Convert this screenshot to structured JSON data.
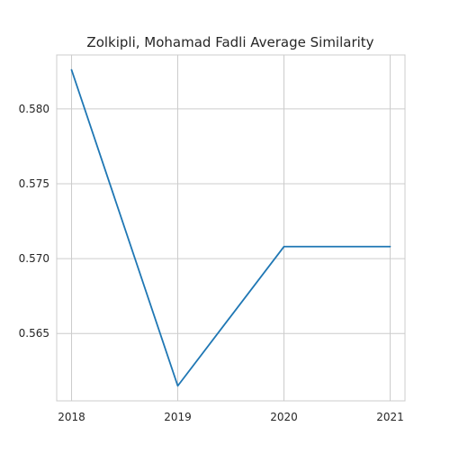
{
  "chart_data": {
    "type": "line",
    "title": "Zolkipli, Mohamad Fadli Average Similarity",
    "xlabel": "",
    "ylabel": "",
    "x": [
      "2018",
      "2019",
      "2020",
      "2021"
    ],
    "series": [
      {
        "values": [
          0.5826,
          0.5615,
          0.5708,
          0.5708
        ],
        "color": "#1f77b4"
      }
    ],
    "xlim": [
      2017.86,
      2021.14
    ],
    "ylim": [
      0.5605,
      0.5836
    ],
    "yticks": [
      0.565,
      0.57,
      0.575,
      0.58
    ],
    "ytick_labels": [
      "0.565",
      "0.570",
      "0.575",
      "0.580"
    ],
    "grid": true,
    "legend": "none",
    "colors": {
      "grid": "#cccccc",
      "spine": "#cccccc",
      "text": "#262626",
      "background": "#ffffff"
    }
  }
}
